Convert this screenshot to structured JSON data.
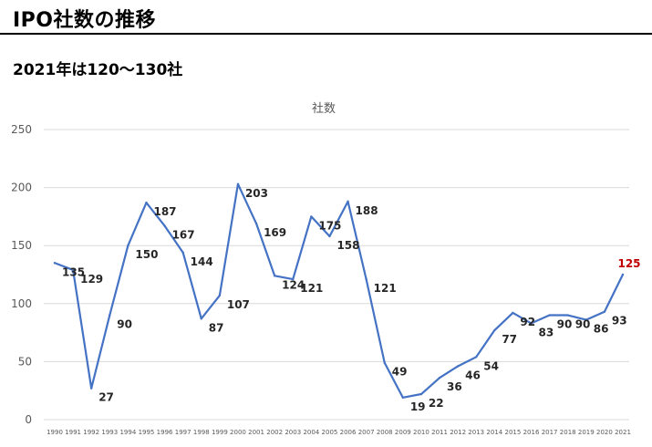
{
  "header": {
    "title": "IPO社数の推移",
    "subtitle": "2021年は120〜130社"
  },
  "colors": {
    "line": "#4472c4",
    "grid": "#d9d9d9",
    "axis_text": "#595959",
    "highlight_label": "#c00000"
  },
  "chart_data": {
    "type": "line",
    "title": "社数",
    "xlabel": "",
    "ylabel": "",
    "ylim": [
      0,
      250
    ],
    "yticks": [
      0,
      50,
      100,
      150,
      200,
      250
    ],
    "grid": true,
    "categories": [
      "1990",
      "1991",
      "1992",
      "1993",
      "1994",
      "1995",
      "1996",
      "1997",
      "1998",
      "1999",
      "2000",
      "2001",
      "2002",
      "2003",
      "2004",
      "2005",
      "2006",
      "2007",
      "2008",
      "2009",
      "2010",
      "2011",
      "2012",
      "2013",
      "2014",
      "2015",
      "2016",
      "2017",
      "2018",
      "2019",
      "2020",
      "2021"
    ],
    "series": [
      {
        "name": "社数",
        "values": [
          135,
          129,
          27,
          90,
          150,
          187,
          167,
          144,
          87,
          107,
          203,
          169,
          124,
          121,
          175,
          158,
          188,
          121,
          49,
          19,
          22,
          36,
          46,
          54,
          77,
          92,
          83,
          90,
          90,
          86,
          93,
          125
        ]
      }
    ],
    "highlight_index": 31
  }
}
